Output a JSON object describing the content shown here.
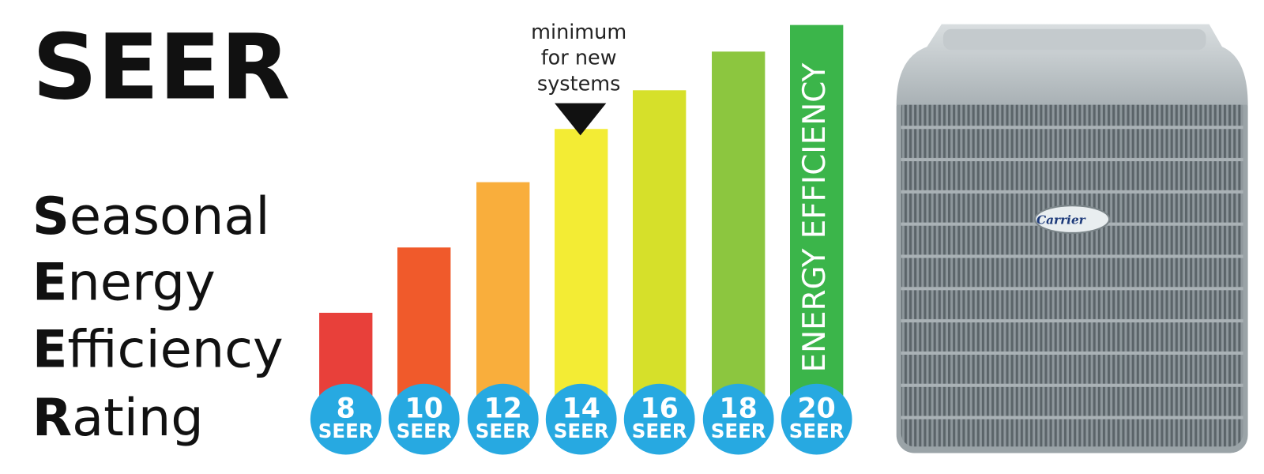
{
  "title": "SEER",
  "acronym": [
    {
      "initial": "S",
      "rest": "easonal"
    },
    {
      "initial": "E",
      "rest": "nergy"
    },
    {
      "initial": "E",
      "rest": "fficiency"
    },
    {
      "initial": "R",
      "rest": "ating"
    }
  ],
  "annotation": [
    "minimum",
    "for new",
    "systems"
  ],
  "bar_label": "ENERGY EFFICIENCY",
  "ratings": [
    {
      "value": 8,
      "unit": "SEER"
    },
    {
      "value": 10,
      "unit": "SEER"
    },
    {
      "value": 12,
      "unit": "SEER"
    },
    {
      "value": 14,
      "unit": "SEER"
    },
    {
      "value": 16,
      "unit": "SEER"
    },
    {
      "value": 18,
      "unit": "SEER"
    },
    {
      "value": 20,
      "unit": "SEER"
    }
  ],
  "unit_brand": "Carrier"
}
